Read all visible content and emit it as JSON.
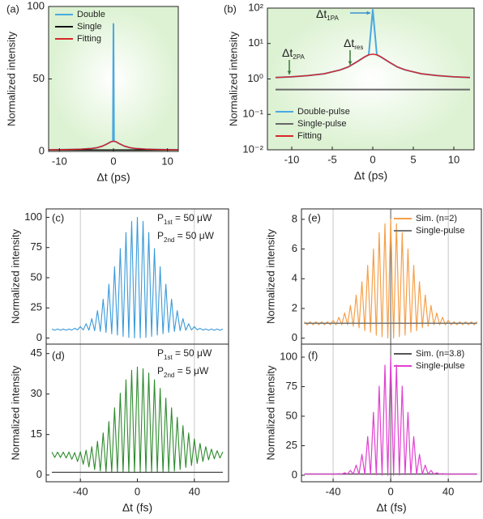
{
  "chart_data": [
    {
      "type": "line",
      "panel_label": "(a)",
      "xlabel": "Δt (ps)",
      "ylabel": "Normalized intensity",
      "background": "#dcf2d2",
      "x": [
        -12,
        -10,
        -8,
        -6,
        -4,
        -3,
        -2,
        -1,
        -0.5,
        -0.1,
        0,
        0.1,
        0.5,
        1,
        2,
        3,
        4,
        6,
        8,
        10,
        12
      ],
      "xlim": [
        -12,
        12
      ],
      "xticks": [
        -10,
        0,
        10
      ],
      "ylim": [
        0,
        100
      ],
      "yticks": [
        0,
        50,
        100
      ],
      "legend": "upper-left",
      "series": [
        {
          "name": "Double",
          "color": "#4aa8e0",
          "width": 2,
          "values": [
            1.1,
            1.2,
            1.3,
            1.5,
            2,
            2.6,
            3.7,
            5.5,
            6.6,
            7,
            88,
            7,
            6.6,
            5.5,
            3.7,
            2.6,
            2,
            1.5,
            1.3,
            1.2,
            1.1
          ]
        },
        {
          "name": "Single",
          "color": "#111111",
          "width": 1.5,
          "values": [
            1,
            1,
            1,
            1,
            1,
            1,
            1,
            1,
            1,
            1,
            1,
            1,
            1,
            1,
            1,
            1,
            1,
            1,
            1,
            1,
            1
          ]
        },
        {
          "name": "Fitting",
          "color": "#d62828",
          "width": 1.5,
          "values": [
            1.1,
            1.2,
            1.3,
            1.5,
            2,
            2.6,
            3.7,
            5.5,
            6.6,
            7,
            7,
            7,
            6.6,
            5.5,
            3.7,
            2.6,
            2,
            1.5,
            1.3,
            1.2,
            1.1
          ]
        }
      ]
    },
    {
      "type": "line",
      "panel_label": "(b)",
      "xlabel": "Δt (ps)",
      "ylabel": "Normalized intensity",
      "background": "#dcf2d2",
      "yscale": "log",
      "x": [
        -12,
        -10,
        -8,
        -6,
        -4,
        -3,
        -2,
        -1,
        -0.5,
        0,
        0.5,
        1,
        2,
        3,
        4,
        6,
        8,
        10,
        12
      ],
      "xlim": [
        -13,
        12.5
      ],
      "xticks": [
        -10,
        -5,
        0,
        5,
        10
      ],
      "ylim": [
        0.01,
        100
      ],
      "yticks": [
        {
          "value": 0.01,
          "label": "10⁻²"
        },
        {
          "value": 0.1,
          "label": "10⁻¹"
        },
        {
          "value": 1,
          "label": "10⁰"
        },
        {
          "value": 10,
          "label": "10¹"
        },
        {
          "value": 100,
          "label": "10²"
        }
      ],
      "legend": "lower-left",
      "annotations": [
        {
          "text": "Δt",
          "sub": "2PA"
        },
        {
          "text": "Δt",
          "sub": "1PA"
        },
        {
          "text": "Δt",
          "sub": "res"
        }
      ],
      "series": [
        {
          "name": "Double-pulse",
          "color": "#4aa8e0",
          "width": 2,
          "values": [
            1.1,
            1.15,
            1.24,
            1.4,
            1.8,
            2.2,
            3,
            4.2,
            4.8,
            90,
            4.8,
            4.2,
            3,
            2.2,
            1.8,
            1.4,
            1.24,
            1.15,
            1.1
          ]
        },
        {
          "name": "Single-pulse",
          "color": "#666666",
          "width": 2,
          "values": [
            0.5,
            0.5,
            0.5,
            0.5,
            0.5,
            0.5,
            0.5,
            0.5,
            0.5,
            0.5,
            0.5,
            0.5,
            0.5,
            0.5,
            0.5,
            0.5,
            0.5,
            0.5,
            0.5
          ]
        },
        {
          "name": "Fitting",
          "color": "#d62828",
          "width": 1.5,
          "values": [
            1.1,
            1.15,
            1.24,
            1.4,
            1.8,
            2.2,
            3,
            4.2,
            4.8,
            5,
            4.8,
            4.2,
            3,
            2.2,
            1.8,
            1.4,
            1.24,
            1.15,
            1.1
          ]
        }
      ]
    },
    {
      "type": "line",
      "panel_label": "(c)",
      "ylabel": "Normalized intensity",
      "x": [
        -60,
        -58,
        -56,
        -54,
        -52,
        -50,
        -48,
        -46,
        -44,
        -42,
        -40,
        -38,
        -36,
        -34,
        -32,
        -30,
        -28,
        -26,
        -24,
        -22,
        -20,
        -18,
        -16,
        -14,
        -12,
        -10,
        -8,
        -6,
        -4,
        -2,
        0,
        2,
        4,
        6,
        8,
        10,
        12,
        14,
        16,
        18,
        20,
        22,
        24,
        26,
        28,
        30,
        32,
        34,
        36,
        38,
        40,
        42,
        44,
        46,
        48,
        50,
        52,
        54,
        56,
        58,
        60
      ],
      "xlim": [
        -64,
        64
      ],
      "ylim": [
        -5,
        107
      ],
      "yticks": [
        0,
        25,
        50,
        75,
        100
      ],
      "vlines": [
        -40,
        40
      ],
      "annotations": [
        {
          "text": "P",
          "sub": "1st",
          "tail": " = 50 μW"
        },
        {
          "text": "P",
          "sub": "2nd",
          "tail": " = 50 μW"
        }
      ],
      "series": [
        {
          "color": "#3a9ad9",
          "width": 1.1,
          "values": [
            7.5,
            6.5,
            7.5,
            6.5,
            7.5,
            6.5,
            7.5,
            6.6,
            8.1,
            6.8,
            9.5,
            6.7,
            11.9,
            6.5,
            16.1,
            6.1,
            22.7,
            5.5,
            32.2,
            4.7,
            44.6,
            3.6,
            59.1,
            2.5,
            74.1,
            1.4,
            87.4,
            0.5,
            96.7,
            0.1,
            100,
            0.1,
            96.7,
            0.5,
            87.4,
            1.4,
            74.1,
            2.5,
            59.1,
            3.6,
            44.6,
            4.7,
            32.2,
            5.5,
            22.7,
            6.1,
            16.1,
            6.5,
            11.9,
            6.7,
            9.5,
            6.8,
            8.1,
            6.6,
            7.5,
            6.5,
            7.5,
            6.5,
            7.5,
            6.5,
            7.5
          ]
        }
      ]
    },
    {
      "type": "line",
      "panel_label": "(d)",
      "xlabel": "Δt (fs)",
      "ylabel": "Normalized intensity",
      "x": [
        -60,
        -58,
        -56,
        -54,
        -52,
        -50,
        -48,
        -46,
        -44,
        -42,
        -40,
        -38,
        -36,
        -34,
        -32,
        -30,
        -28,
        -26,
        -24,
        -22,
        -20,
        -18,
        -16,
        -14,
        -12,
        -10,
        -8,
        -6,
        -4,
        -2,
        0,
        2,
        4,
        6,
        8,
        10,
        12,
        14,
        16,
        18,
        20,
        22,
        24,
        26,
        28,
        30,
        32,
        34,
        36,
        38,
        40,
        42,
        44,
        46,
        48,
        50,
        52,
        54,
        56,
        58,
        60
      ],
      "xlim": [
        -64,
        64
      ],
      "xticks": [
        -40,
        0,
        40
      ],
      "ylim": [
        -2.5,
        48.5
      ],
      "yticks": [
        0,
        15,
        30,
        45
      ],
      "vlines": [
        -40,
        40
      ],
      "annotations": [
        {
          "text": "P",
          "sub": "1st",
          "tail": " = 50 μW"
        },
        {
          "text": "P",
          "sub": "2nd",
          "tail": " = 5 μW"
        }
      ],
      "series": [
        {
          "color": "#2e8b2e",
          "width": 1.1,
          "values": [
            8.5,
            6.5,
            8.5,
            6.5,
            8.5,
            6.3,
            8.5,
            5.8,
            8.3,
            5,
            8.6,
            4,
            9.2,
            3,
            10.5,
            2,
            12.5,
            1.5,
            15.6,
            1.2,
            19.8,
            1,
            24.9,
            1,
            30.3,
            1,
            35.3,
            1,
            38.8,
            1,
            40,
            1,
            39.4,
            1,
            37.8,
            1,
            35.3,
            1,
            32.1,
            1,
            28.5,
            1.2,
            24.9,
            1.5,
            21.4,
            2,
            18.3,
            2.8,
            15.6,
            3.5,
            13.4,
            4.3,
            11.7,
            5,
            10.5,
            5.6,
            9.6,
            6,
            9,
            6.3,
            8.6
          ]
        },
        {
          "color": "#333333",
          "width": 1.2,
          "values": [
            1,
            1,
            1,
            1,
            1,
            1,
            1,
            1,
            1,
            1,
            1,
            1,
            1,
            1,
            1,
            1,
            1,
            1,
            1,
            1,
            1,
            1,
            1,
            1,
            1,
            1,
            1,
            1,
            1,
            1,
            1,
            1,
            1,
            1,
            1,
            1,
            1,
            1,
            1,
            1,
            1,
            1,
            1,
            1,
            1,
            1,
            1,
            1,
            1,
            1,
            1,
            1,
            1,
            1,
            1,
            1,
            1,
            1,
            1,
            1,
            1
          ]
        }
      ]
    },
    {
      "type": "line",
      "panel_label": "(e)",
      "ylabel": "Normalized intensity",
      "x": [
        -60,
        -58,
        -56,
        -54,
        -52,
        -50,
        -48,
        -46,
        -44,
        -42,
        -40,
        -38,
        -36,
        -34,
        -32,
        -30,
        -28,
        -26,
        -24,
        -22,
        -20,
        -18,
        -16,
        -14,
        -12,
        -10,
        -8,
        -6,
        -4,
        -2,
        0,
        2,
        4,
        6,
        8,
        10,
        12,
        14,
        16,
        18,
        20,
        22,
        24,
        26,
        28,
        30,
        32,
        34,
        36,
        38,
        40,
        42,
        44,
        46,
        48,
        50,
        52,
        54,
        56,
        58,
        60
      ],
      "xlim": [
        -62,
        63
      ],
      "ylim": [
        -0.4,
        8.7
      ],
      "yticks": [
        0,
        2,
        4,
        6,
        8
      ],
      "vlines": [
        -40,
        0,
        40
      ],
      "legend": "upper-right",
      "series": [
        {
          "name": "Sim. (n=2)",
          "color": "#f5a04a",
          "width": 1.2,
          "values": [
            1.1,
            0.9,
            1.1,
            0.9,
            1.1,
            0.9,
            1.1,
            0.9,
            1.1,
            0.9,
            1.2,
            0.9,
            1.4,
            0.9,
            1.7,
            0.9,
            2.2,
            0.8,
            2.9,
            0.7,
            3.8,
            0.5,
            4.9,
            0.4,
            6,
            0.2,
            7.1,
            0.1,
            7.7,
            0,
            8,
            0,
            7.7,
            0.1,
            7.1,
            0.2,
            6,
            0.4,
            4.9,
            0.5,
            3.8,
            0.7,
            2.9,
            0.8,
            2.2,
            0.9,
            1.7,
            0.9,
            1.4,
            0.9,
            1.2,
            0.9,
            1.1,
            0.9,
            1.1,
            0.9,
            1.1,
            0.9,
            1.1,
            0.9,
            1.1
          ]
        },
        {
          "name": "Single-pulse",
          "color": "#777777",
          "width": 1.5,
          "values": [
            1,
            1,
            1,
            1,
            1,
            1,
            1,
            1,
            1,
            1,
            1,
            1,
            1,
            1,
            1,
            1,
            1,
            1,
            1,
            1,
            1,
            1,
            1,
            1,
            1,
            1,
            1,
            1,
            1,
            1,
            1,
            1,
            1,
            1,
            1,
            1,
            1,
            1,
            1,
            1,
            1,
            1,
            1,
            1,
            1,
            1,
            1,
            1,
            1,
            1,
            1,
            1,
            1,
            1,
            1,
            1,
            1,
            1,
            1,
            1,
            1
          ]
        }
      ]
    },
    {
      "type": "line",
      "panel_label": "(f)",
      "xlabel": "Δt (fs)",
      "ylabel": "Normalized intensity",
      "x": [
        -60,
        -58,
        -56,
        -54,
        -52,
        -50,
        -48,
        -46,
        -44,
        -42,
        -40,
        -38,
        -36,
        -34,
        -32,
        -30,
        -28,
        -26,
        -24,
        -22,
        -20,
        -18,
        -16,
        -14,
        -12,
        -10,
        -8,
        -6,
        -4,
        -2,
        0,
        2,
        4,
        6,
        8,
        10,
        12,
        14,
        16,
        18,
        20,
        22,
        24,
        26,
        28,
        30,
        32,
        34,
        36,
        38,
        40,
        42,
        44,
        46,
        48,
        50,
        52,
        54,
        56,
        58,
        60
      ],
      "xlim": [
        -62,
        63
      ],
      "xticks": [
        -40,
        0,
        40
      ],
      "ylim": [
        -5.5,
        111
      ],
      "yticks": [
        0,
        25,
        50,
        75,
        100
      ],
      "vlines": [
        -40,
        0,
        40
      ],
      "legend": "upper-right",
      "series": [
        {
          "name": "Sim. (n=3.8)",
          "color": "#555555",
          "width": 1.5,
          "values": [
            1,
            1,
            1,
            1,
            1,
            1,
            1,
            1,
            1,
            1,
            1,
            1,
            1,
            1,
            1,
            1,
            1,
            1,
            1,
            1,
            1,
            1,
            1,
            1,
            1,
            1,
            1,
            1,
            1,
            1,
            1,
            1,
            1,
            1,
            1,
            1,
            1,
            1,
            1,
            1,
            1,
            1,
            1,
            1,
            1,
            1,
            1,
            1,
            1,
            1,
            1,
            1,
            1,
            1,
            1,
            1,
            1,
            1,
            1,
            1,
            1
          ]
        },
        {
          "name": "Single-pulse",
          "color": "#e040d0",
          "width": 1.2,
          "values": [
            1,
            1,
            1,
            1,
            1,
            1,
            1,
            1,
            1,
            1,
            1,
            1,
            1.3,
            1,
            2.1,
            1,
            4.1,
            1,
            8.6,
            0.9,
            17.7,
            0.8,
            32.7,
            0.6,
            53.2,
            0.4,
            75.4,
            0.1,
            93.2,
            0,
            100,
            0,
            93.2,
            0.1,
            75.4,
            0.4,
            53.2,
            0.6,
            32.7,
            0.8,
            17.7,
            0.9,
            8.6,
            1,
            4.1,
            1,
            2.1,
            1,
            1.3,
            1,
            1,
            1,
            1,
            1,
            1,
            1,
            1,
            1,
            1,
            1,
            1
          ]
        }
      ]
    }
  ]
}
